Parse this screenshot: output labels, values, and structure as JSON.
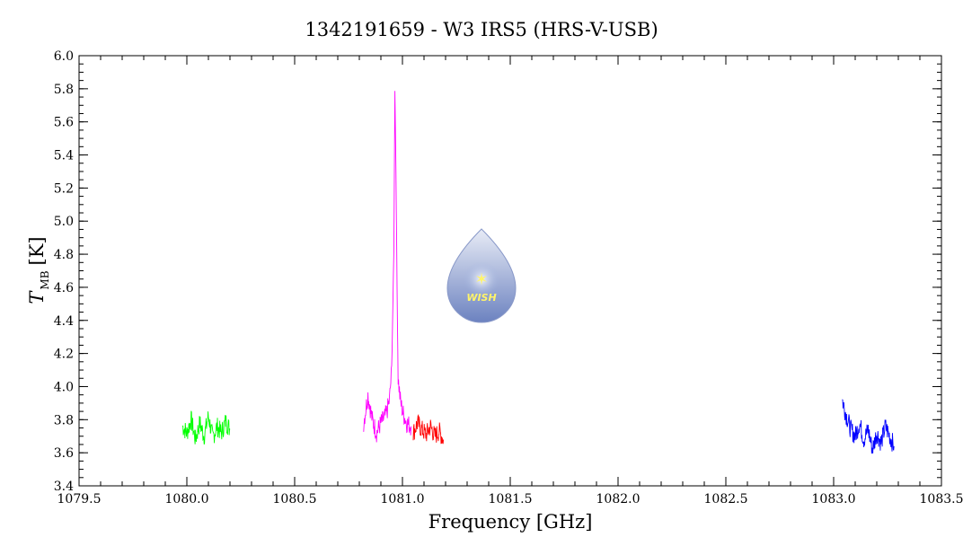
{
  "chart_data": {
    "type": "line",
    "title": "1342191659 - W3 IRS5 (HRS-V-USB)",
    "xlabel": "Frequency [GHz]",
    "ylabel": {
      "symbol": "T",
      "subscript": "MB",
      "unit": "[K]"
    },
    "xlim": [
      1079.5,
      1083.5
    ],
    "ylim": [
      3.4,
      6.0
    ],
    "xticks": [
      "1079.5",
      "1080.0",
      "1080.5",
      "1081.0",
      "1081.5",
      "1082.0",
      "1082.5",
      "1083.0",
      "1083.5"
    ],
    "yticks": [
      "3.4",
      "3.6",
      "3.8",
      "4.0",
      "4.2",
      "4.4",
      "4.6",
      "4.8",
      "5.0",
      "5.2",
      "5.4",
      "5.6",
      "5.8",
      "6.0"
    ],
    "grid": false,
    "series": [
      {
        "color": "#00ff00",
        "x": [
          1079.98,
          1080.0,
          1080.02,
          1080.04,
          1080.06,
          1080.08,
          1080.1,
          1080.12,
          1080.14,
          1080.16,
          1080.18,
          1080.2
        ],
        "y": [
          3.76,
          3.72,
          3.8,
          3.68,
          3.78,
          3.7,
          3.82,
          3.69,
          3.76,
          3.72,
          3.79,
          3.74
        ]
      },
      {
        "color": "#ff00ff",
        "x": [
          1080.82,
          1080.84,
          1080.86,
          1080.88,
          1080.9,
          1080.92,
          1080.93,
          1080.94,
          1080.95,
          1080.96,
          1080.965,
          1080.97,
          1080.975,
          1080.98,
          1080.99,
          1081.0,
          1081.02,
          1081.04
        ],
        "y": [
          3.78,
          3.95,
          3.8,
          3.72,
          3.78,
          3.82,
          3.86,
          3.92,
          4.1,
          4.8,
          5.8,
          5.3,
          4.6,
          4.05,
          3.92,
          3.85,
          3.78,
          3.76
        ]
      },
      {
        "color": "#ff0000",
        "x": [
          1081.05,
          1081.07,
          1081.09,
          1081.11,
          1081.13,
          1081.15,
          1081.17,
          1081.19
        ],
        "y": [
          3.72,
          3.78,
          3.74,
          3.71,
          3.76,
          3.7,
          3.73,
          3.68
        ]
      },
      {
        "color": "#0000ff",
        "x": [
          1083.04,
          1083.06,
          1083.08,
          1083.1,
          1083.12,
          1083.14,
          1083.16,
          1083.18,
          1083.2,
          1083.22,
          1083.24,
          1083.26,
          1083.28
        ],
        "y": [
          3.92,
          3.82,
          3.74,
          3.7,
          3.78,
          3.68,
          3.74,
          3.62,
          3.72,
          3.66,
          3.76,
          3.7,
          3.64
        ]
      }
    ]
  },
  "logo": {
    "text": "WISH"
  }
}
